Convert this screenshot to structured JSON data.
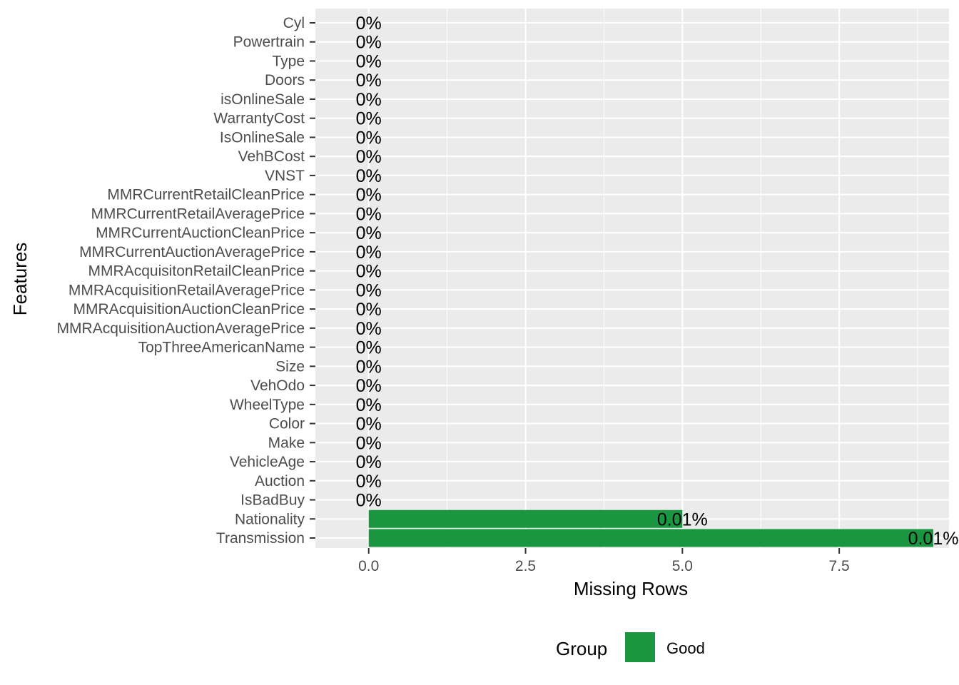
{
  "chart_data": {
    "type": "bar",
    "orientation": "horizontal",
    "xlabel": "Missing Rows",
    "ylabel": "Features",
    "xlim": [
      -0.85,
      9.25
    ],
    "xticks": [
      0.0,
      2.5,
      5.0,
      7.5
    ],
    "xtick_labels": [
      "0.0",
      "2.5",
      "5.0",
      "7.5"
    ],
    "grid": true,
    "categories": [
      "Cyl",
      "Powertrain",
      "Type",
      "Doors",
      "isOnlineSale",
      "WarrantyCost",
      "IsOnlineSale",
      "VehBCost",
      "VNST",
      "MMRCurrentRetailCleanPrice",
      "MMRCurrentRetailAveragePrice",
      "MMRCurrentAuctionCleanPrice",
      "MMRCurrentAuctionAveragePrice",
      "MMRAcquisitonRetailCleanPrice",
      "MMRAcquisitionRetailAveragePrice",
      "MMRAcquisitionAuctionCleanPrice",
      "MMRAcquisitionAuctionAveragePrice",
      "TopThreeAmericanName",
      "Size",
      "VehOdo",
      "WheelType",
      "Color",
      "Make",
      "VehicleAge",
      "Auction",
      "IsBadBuy",
      "Nationality",
      "Transmission"
    ],
    "values": [
      0,
      0,
      0,
      0,
      0,
      0,
      0,
      0,
      0,
      0,
      0,
      0,
      0,
      0,
      0,
      0,
      0,
      0,
      0,
      0,
      0,
      0,
      0,
      0,
      0,
      0,
      5,
      9
    ],
    "labels": [
      "0%",
      "0%",
      "0%",
      "0%",
      "0%",
      "0%",
      "0%",
      "0%",
      "0%",
      "0%",
      "0%",
      "0%",
      "0%",
      "0%",
      "0%",
      "0%",
      "0%",
      "0%",
      "0%",
      "0%",
      "0%",
      "0%",
      "0%",
      "0%",
      "0%",
      "0%",
      "0.01%",
      "0.01%"
    ],
    "legend": {
      "title": "Group",
      "position": "bottom",
      "entries": [
        {
          "label": "Good",
          "color": "#1a9641"
        }
      ]
    },
    "colors": {
      "bar": "#1a9641",
      "panel": "#ebebeb",
      "grid": "#ffffff"
    }
  }
}
